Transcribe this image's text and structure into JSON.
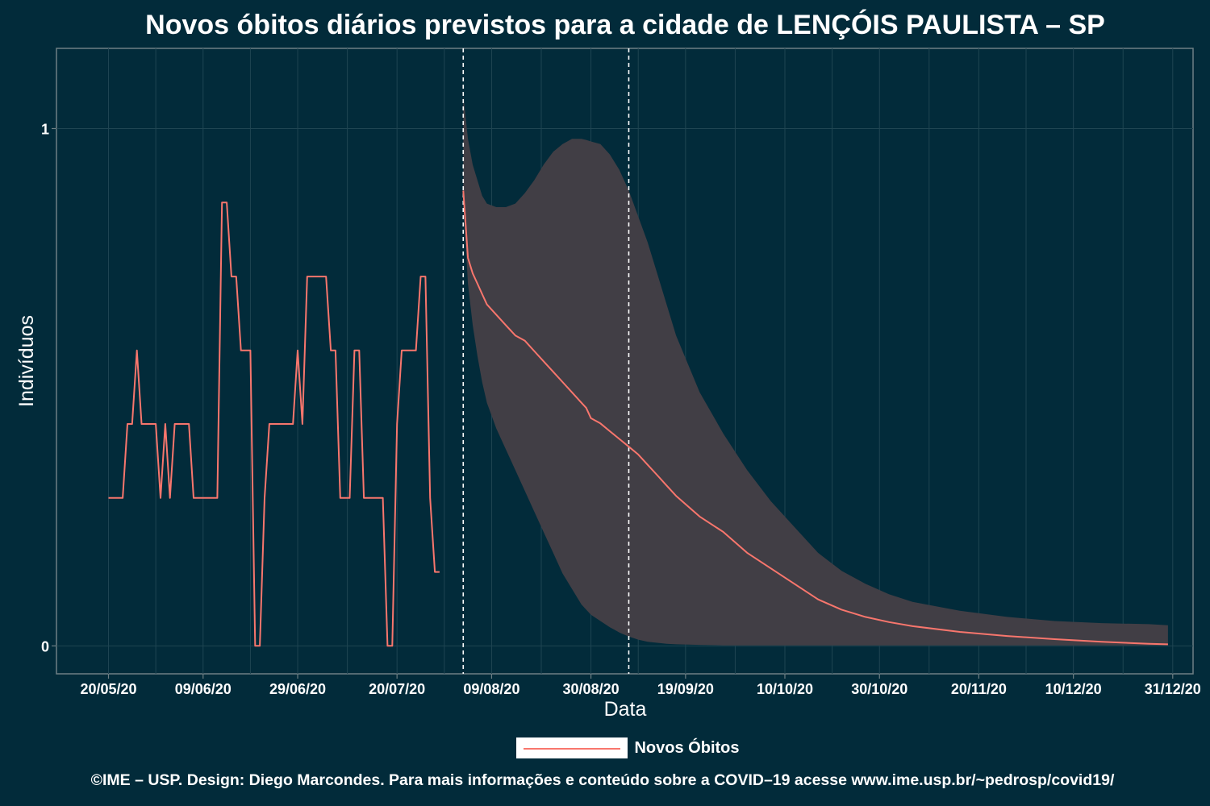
{
  "chart_data": {
    "type": "line",
    "title": "Novos óbitos diários previstos para a cidade de LENÇÓIS PAULISTA – SP",
    "xlabel": "Data",
    "ylabel": "Indivíduos",
    "x_tick_labels": [
      "20/05/20",
      "09/06/20",
      "29/06/20",
      "20/07/20",
      "09/08/20",
      "30/08/20",
      "19/09/20",
      "10/10/20",
      "30/10/20",
      "20/11/20",
      "10/12/20",
      "31/12/20"
    ],
    "x_tick_days": [
      0,
      20,
      40,
      61,
      81,
      102,
      122,
      143,
      163,
      184,
      204,
      225
    ],
    "y_tick_labels": [
      "0",
      "1"
    ],
    "y_ticks": [
      0,
      1
    ],
    "xlim_days": [
      -11,
      229.3
    ],
    "ylim": [
      -0.054,
      1.155
    ],
    "vlines_dates": [
      "03/08/20",
      "07/09/20"
    ],
    "legend": {
      "position": "bottom",
      "entries": [
        "Novos Óbitos"
      ]
    },
    "grid": true,
    "colors": {
      "background": "#022b3a",
      "line": "#f8766d",
      "band": "#413e45",
      "grid": "#1f4552",
      "vline": "#ffffff"
    },
    "observed": {
      "x_days": [
        0,
        1,
        2,
        3,
        4,
        5,
        6,
        7,
        8,
        9,
        10,
        11,
        12,
        13,
        14,
        15,
        16,
        17,
        18,
        19,
        20,
        21,
        22,
        23,
        24,
        25,
        26,
        27,
        28,
        29,
        30,
        31,
        32,
        33,
        34,
        35,
        36,
        37,
        38,
        39,
        40,
        41,
        42,
        43,
        44,
        45,
        46,
        47,
        48,
        49,
        50,
        51,
        52,
        53,
        54,
        55,
        56,
        57,
        58,
        59,
        60,
        61,
        62,
        63,
        64,
        65,
        66,
        67,
        68,
        69,
        70
      ],
      "values": [
        0.286,
        0.286,
        0.286,
        0.286,
        0.429,
        0.429,
        0.571,
        0.429,
        0.429,
        0.429,
        0.429,
        0.286,
        0.429,
        0.286,
        0.429,
        0.429,
        0.429,
        0.429,
        0.286,
        0.286,
        0.286,
        0.286,
        0.286,
        0.286,
        0.857,
        0.857,
        0.714,
        0.714,
        0.571,
        0.571,
        0.571,
        0,
        0,
        0.286,
        0.429,
        0.429,
        0.429,
        0.429,
        0.429,
        0.429,
        0.571,
        0.429,
        0.714,
        0.714,
        0.714,
        0.714,
        0.714,
        0.571,
        0.571,
        0.286,
        0.286,
        0.286,
        0.571,
        0.571,
        0.286,
        0.286,
        0.286,
        0.286,
        0.286,
        0,
        0,
        0.429,
        0.571,
        0.571,
        0.571,
        0.571,
        0.714,
        0.714,
        0.286,
        0.143,
        0.143
      ]
    },
    "forecast": {
      "x_days": [
        75,
        76,
        77,
        78,
        79,
        80,
        82,
        84,
        86,
        88,
        90,
        92,
        94,
        96,
        98,
        100,
        101,
        102,
        104,
        106,
        108,
        110,
        112,
        114,
        116,
        118,
        120,
        125,
        130,
        135,
        140,
        145,
        150,
        155,
        160,
        165,
        170,
        180,
        190,
        200,
        210,
        220,
        224
      ],
      "values": [
        0.88,
        0.75,
        0.72,
        0.7,
        0.68,
        0.66,
        0.64,
        0.62,
        0.6,
        0.59,
        0.57,
        0.55,
        0.53,
        0.51,
        0.49,
        0.47,
        0.46,
        0.44,
        0.43,
        0.415,
        0.4,
        0.385,
        0.37,
        0.35,
        0.33,
        0.31,
        0.29,
        0.25,
        0.22,
        0.18,
        0.15,
        0.12,
        0.09,
        0.07,
        0.056,
        0.046,
        0.038,
        0.027,
        0.019,
        0.013,
        0.008,
        0.004,
        0.003
      ],
      "upper": [
        1.065,
        0.98,
        0.93,
        0.9,
        0.87,
        0.855,
        0.848,
        0.848,
        0.855,
        0.875,
        0.9,
        0.93,
        0.955,
        0.97,
        0.98,
        0.98,
        0.978,
        0.975,
        0.97,
        0.95,
        0.92,
        0.88,
        0.83,
        0.78,
        0.72,
        0.66,
        0.6,
        0.49,
        0.41,
        0.34,
        0.28,
        0.23,
        0.18,
        0.145,
        0.12,
        0.1,
        0.085,
        0.068,
        0.056,
        0.048,
        0.044,
        0.042,
        0.04
      ],
      "lower": [
        0.86,
        0.7,
        0.62,
        0.56,
        0.51,
        0.47,
        0.42,
        0.38,
        0.34,
        0.3,
        0.26,
        0.22,
        0.18,
        0.14,
        0.11,
        0.08,
        0.07,
        0.06,
        0.048,
        0.036,
        0.026,
        0.018,
        0.012,
        0.008,
        0.006,
        0.004,
        0.003,
        0.002,
        0.001,
        0.001,
        0.001,
        0.001,
        0.001,
        0.001,
        0.001,
        0.001,
        0.001,
        0.001,
        0.001,
        0.001,
        0.001,
        0.001,
        0.001
      ]
    }
  },
  "footer": "©IME – USP. Design: Diego Marcondes. Para mais informações e conteúdo sobre a COVID–19 acesse www.ime.usp.br/~pedrosp/covid19/"
}
